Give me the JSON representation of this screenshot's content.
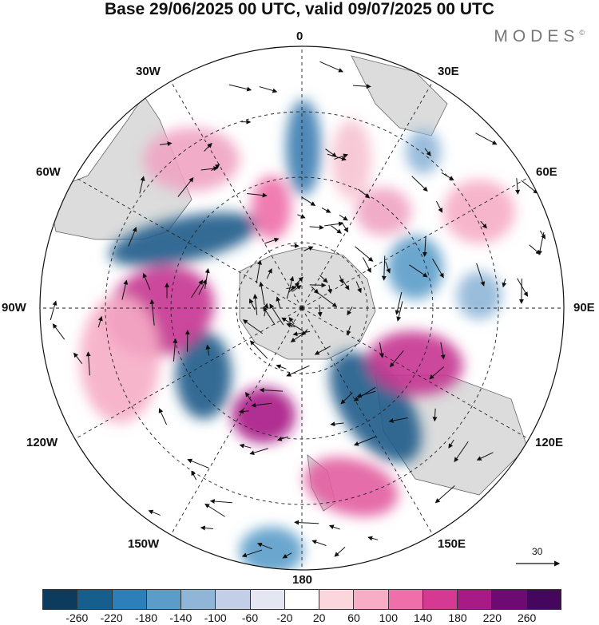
{
  "title": "Base 29/06/2025 00 UTC, valid 09/07/2025 00 UTC",
  "brand": "MODES",
  "brand_mark": "©",
  "longitude_labels": {
    "deg0": "0",
    "deg30e": "30E",
    "deg60e": "60E",
    "deg90e": "90E",
    "deg120e": "120E",
    "deg150e": "150E",
    "deg180": "180",
    "deg150w": "150W",
    "deg120w": "120W",
    "deg90w": "90W",
    "deg60w": "60W",
    "deg30w": "30W"
  },
  "vector_scale_label": "30",
  "colorbar": {
    "ticks": [
      "-260",
      "-220",
      "-180",
      "-140",
      "-100",
      "-60",
      "-20",
      "20",
      "60",
      "100",
      "140",
      "180",
      "220",
      "260"
    ],
    "colors": [
      "#0d3b5e",
      "#165f8c",
      "#2c7fb8",
      "#5b9cc9",
      "#8fb6d8",
      "#c2cfe6",
      "#e4e6f1",
      "#ffffff",
      "#fbd6dc",
      "#f6adc5",
      "#ee6fa9",
      "#d53a93",
      "#a81b86",
      "#6e0b72",
      "#45075d"
    ]
  },
  "colors": {
    "negative_strong": "#1f5b8a",
    "negative_weak": "#a9c3df",
    "positive_weak": "#f5b7c8",
    "positive_strong": "#b5268c",
    "land": "#d9d9d9"
  },
  "map_data": {
    "projection": "south-polar-stereographic",
    "field": "500hPa geopotential height anomaly with wind vectors",
    "anomalies": [
      {
        "label": "negative",
        "lon": "-100",
        "strength": "strong"
      },
      {
        "label": "negative",
        "lon": "0",
        "strength": "moderate"
      },
      {
        "label": "negative",
        "lon": "130",
        "strength": "strong"
      },
      {
        "label": "negative",
        "lon": "-150",
        "strength": "strong"
      },
      {
        "label": "positive",
        "lon": "-80",
        "strength": "strong"
      },
      {
        "label": "positive",
        "lon": "105",
        "strength": "strong"
      },
      {
        "label": "positive",
        "lon": "165",
        "strength": "moderate"
      },
      {
        "label": "positive",
        "lon": "-165",
        "strength": "strong"
      }
    ]
  }
}
